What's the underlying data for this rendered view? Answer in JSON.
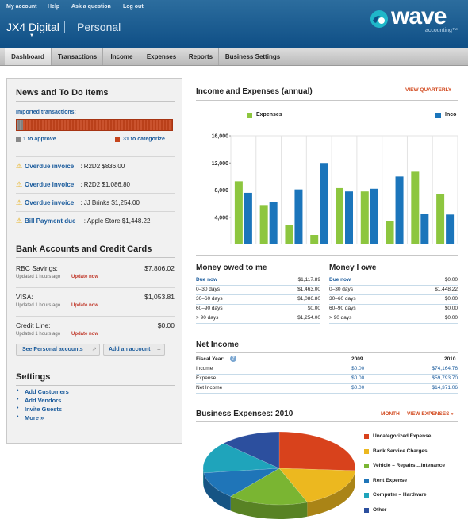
{
  "header": {
    "top_links": [
      "My account",
      "Help",
      "Ask a question",
      "Log out"
    ],
    "company": "JX4 Digital",
    "workspace": "Personal",
    "logo_word": "wave",
    "logo_sub": "accounting™"
  },
  "nav": {
    "tabs": [
      "Dashboard",
      "Transactions",
      "Income",
      "Expenses",
      "Reports",
      "Business Settings"
    ],
    "active": "Dashboard"
  },
  "news": {
    "title": "News and To Do Items",
    "imported_label": "Imported transactions:",
    "approve_fraction": 0.04,
    "to_approve": "1 to approve",
    "to_categorize": "31 to categorize",
    "items": [
      {
        "label": "Overdue invoice",
        "text": ": R2D2 $836.00"
      },
      {
        "label": "Overdue invoice",
        "text": ": R2D2 $1,086.80"
      },
      {
        "label": "Overdue invoice",
        "text": ": JJ Brinks $1,254.00"
      },
      {
        "label": "Bill Payment due",
        "text": ": Apple Store $1,448.22"
      }
    ]
  },
  "accounts": {
    "title": "Bank Accounts and Credit Cards",
    "items": [
      {
        "name": "RBC Savings:",
        "amount": "$7,806.02",
        "updated": "Updated 1 hours ago",
        "action": "Update now"
      },
      {
        "name": "VISA:",
        "amount": "$1,053.81",
        "updated": "Updated 1 hours ago",
        "action": "Update now"
      },
      {
        "name": "Credit Line:",
        "amount": "$0.00",
        "updated": "Updated 1 hours ago",
        "action": "Update now"
      }
    ],
    "see_personal": "See Personal accounts",
    "add_account": "Add an account"
  },
  "settings": {
    "title": "Settings",
    "links": [
      "Add Customers",
      "Add Vendors",
      "Invite Guests",
      "More »"
    ]
  },
  "income_chart": {
    "title": "Income and Expenses (annual)",
    "view_link": "VIEW QUARTERLY",
    "colors": {
      "expenses": "#8dc63f",
      "income": "#1b75bb"
    }
  },
  "chart_data": {
    "type": "bar",
    "series": [
      {
        "name": "Expenses",
        "values": [
          9300,
          5800,
          2900,
          1400,
          8300,
          7800,
          3500,
          10700,
          7400
        ]
      },
      {
        "name": "Inco",
        "values": [
          7600,
          6200,
          8100,
          12000,
          7800,
          8200,
          10000,
          4500,
          4400
        ]
      }
    ],
    "y_ticks": [
      "16,000",
      "12,000",
      "8,000",
      "4,000"
    ],
    "ylim": [
      0,
      16000
    ],
    "grid": true,
    "legend": "top"
  },
  "money_owed": {
    "title": "Money owed to me",
    "rows": [
      {
        "label": "Due now",
        "value": "$1,117.89"
      },
      {
        "label": "0–30 days",
        "value": "$1,463.00"
      },
      {
        "label": "30–60 days",
        "value": "$1,086.80"
      },
      {
        "label": "60–90 days",
        "value": "$0.00"
      },
      {
        "label": "> 90 days",
        "value": "$1,254.00"
      }
    ]
  },
  "money_owe": {
    "title": "Money I owe",
    "rows": [
      {
        "label": "Due now",
        "value": "$0.00"
      },
      {
        "label": "0–30 days",
        "value": "$1,448.22"
      },
      {
        "label": "30–60 days",
        "value": "$0.00"
      },
      {
        "label": "60–90 days",
        "value": "$0.00"
      },
      {
        "label": "> 90 days",
        "value": "$0.00"
      }
    ]
  },
  "net_income": {
    "title": "Net Income",
    "fiscal_label": "Fiscal Year:",
    "years": [
      "2009",
      "2010"
    ],
    "rows": [
      {
        "label": "Income",
        "v2009": "$0.00",
        "v2010": "$74,164.76"
      },
      {
        "label": "Expense",
        "v2009": "$0.00",
        "v2010": "$59,793.70"
      },
      {
        "label": "Net Income",
        "v2009": "$0.00",
        "v2010": "$14,371.06"
      }
    ]
  },
  "business_expenses": {
    "title": "Business Expenses: 2010",
    "month_link": "MONTH",
    "view_link": "VIEW EXPENSES »",
    "legend": [
      {
        "name": "Uncategorized Expense",
        "color": "#d8421c"
      },
      {
        "name": "Bank Service Charges",
        "color": "#ecb81f"
      },
      {
        "name": "Vehicle – Repairs ...intenance",
        "color": "#7ab532"
      },
      {
        "name": "Rent Expense",
        "color": "#1f75b8"
      },
      {
        "name": "Computer – Hardware",
        "color": "#1fa4bb"
      },
      {
        "name": "Other",
        "color": "#2c4f9e"
      }
    ],
    "pie_fractions": [
      0.26,
      0.18,
      0.17,
      0.12,
      0.14,
      0.13
    ]
  }
}
